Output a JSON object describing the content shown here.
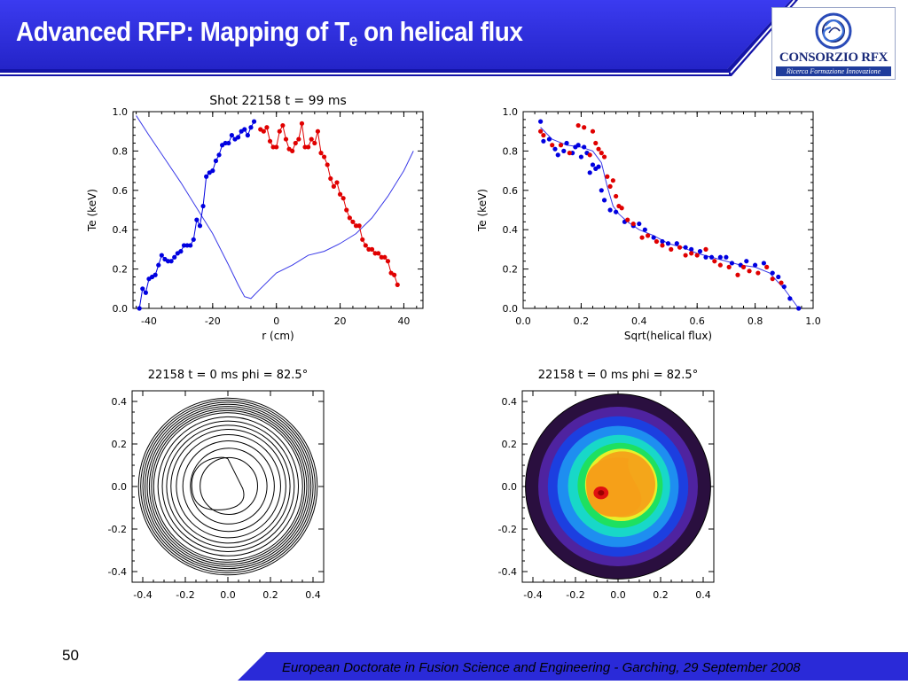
{
  "header": {
    "title_main": "Advanced RFP: Mapping of T",
    "title_sub": "e",
    "title_tail": " on helical flux",
    "colors": {
      "banner": "#2f2fe0",
      "banner_dark": "#1414a8",
      "accent": "#ffffff"
    }
  },
  "logo": {
    "name": "CONSORZIO RFX",
    "tagline": "Ricerca Formazione Innovazione",
    "icon": "rfx-swirl-icon"
  },
  "footer": {
    "page_number": "50",
    "text": "European Doctorate in Fusion Science and Engineering  -  Garching, 29 September 2008"
  },
  "chart_data": [
    {
      "type": "scatter",
      "title": "Shot  22158    t  =  99  ms",
      "xlabel": "r (cm)",
      "ylabel": "Te (keV)",
      "xlim": [
        -45,
        46
      ],
      "ylim": [
        0.0,
        1.0
      ],
      "xticks": [
        "-40",
        "-20",
        "0",
        "20",
        "40"
      ],
      "xtick_values": [
        -40,
        -20,
        0,
        20,
        40
      ],
      "yticks": [
        "0.0",
        "0.2",
        "0.4",
        "0.6",
        "0.8",
        "1.0"
      ],
      "series": [
        {
          "color": "#0000e0",
          "x": [
            -43,
            -42,
            -41,
            -40,
            -39,
            -38,
            -37,
            -36,
            -35,
            -34,
            -33,
            -32,
            -31,
            -30,
            -29,
            -28,
            -27,
            -26,
            -25,
            -24,
            -23,
            -22,
            -21,
            -20,
            -19,
            -18,
            -17,
            -16,
            -15,
            -14,
            -13,
            -12,
            -11,
            -10,
            -9,
            -8,
            -7
          ],
          "y": [
            0.0,
            0.1,
            0.08,
            0.15,
            0.16,
            0.17,
            0.22,
            0.27,
            0.25,
            0.24,
            0.24,
            0.26,
            0.28,
            0.29,
            0.32,
            0.32,
            0.32,
            0.35,
            0.45,
            0.42,
            0.52,
            0.67,
            0.69,
            0.7,
            0.75,
            0.78,
            0.83,
            0.84,
            0.84,
            0.88,
            0.86,
            0.87,
            0.9,
            0.91,
            0.88,
            0.92,
            0.95
          ]
        },
        {
          "color": "#e00000",
          "x": [
            -5,
            -4,
            -3,
            -2,
            -1,
            0,
            1,
            2,
            3,
            4,
            5,
            6,
            7,
            8,
            9,
            10,
            11,
            12,
            13,
            14,
            15,
            16,
            17,
            18,
            19,
            20,
            21,
            22,
            23,
            24,
            25,
            26,
            27,
            28,
            29,
            30,
            31,
            32,
            33,
            34,
            35,
            36,
            37,
            38
          ],
          "y": [
            0.91,
            0.9,
            0.92,
            0.85,
            0.82,
            0.82,
            0.9,
            0.93,
            0.86,
            0.81,
            0.8,
            0.84,
            0.86,
            0.94,
            0.82,
            0.82,
            0.86,
            0.84,
            0.9,
            0.79,
            0.77,
            0.73,
            0.66,
            0.62,
            0.64,
            0.58,
            0.56,
            0.5,
            0.46,
            0.44,
            0.42,
            0.42,
            0.35,
            0.32,
            0.3,
            0.3,
            0.28,
            0.28,
            0.26,
            0.26,
            0.24,
            0.18,
            0.17,
            0.12
          ]
        }
      ],
      "curve": {
        "color": "#3a3ae8",
        "x": [
          -44,
          -40,
          -35,
          -30,
          -25,
          -20,
          -15,
          -12,
          -10,
          -8,
          -5,
          0,
          5,
          10,
          15,
          20,
          25,
          30,
          35,
          40,
          43
        ],
        "y": [
          0.98,
          0.88,
          0.76,
          0.64,
          0.51,
          0.38,
          0.22,
          0.12,
          0.06,
          0.05,
          0.1,
          0.18,
          0.22,
          0.27,
          0.29,
          0.33,
          0.38,
          0.46,
          0.57,
          0.7,
          0.8
        ]
      }
    },
    {
      "type": "scatter",
      "title": "",
      "xlabel": "Sqrt(helical flux)",
      "ylabel": "Te (keV)",
      "xlim": [
        0.0,
        1.0
      ],
      "ylim": [
        0.0,
        1.0
      ],
      "xticks": [
        "0.0",
        "0.2",
        "0.4",
        "0.6",
        "0.8",
        "1.0"
      ],
      "xtick_values": [
        0.0,
        0.2,
        0.4,
        0.6,
        0.8,
        1.0
      ],
      "yticks": [
        "0.0",
        "0.2",
        "0.4",
        "0.6",
        "0.8",
        "1.0"
      ],
      "series": [
        {
          "color": "#0000e0",
          "x": [
            0.06,
            0.07,
            0.09,
            0.11,
            0.12,
            0.14,
            0.15,
            0.17,
            0.18,
            0.19,
            0.2,
            0.21,
            0.22,
            0.23,
            0.24,
            0.25,
            0.26,
            0.27,
            0.28,
            0.3,
            0.32,
            0.35,
            0.38,
            0.4,
            0.42,
            0.45,
            0.48,
            0.5,
            0.53,
            0.56,
            0.58,
            0.61,
            0.63,
            0.65,
            0.68,
            0.7,
            0.72,
            0.75,
            0.77,
            0.8,
            0.83,
            0.86,
            0.88,
            0.9,
            0.92,
            0.95
          ],
          "y": [
            0.95,
            0.85,
            0.86,
            0.81,
            0.78,
            0.8,
            0.84,
            0.79,
            0.82,
            0.83,
            0.77,
            0.82,
            0.79,
            0.69,
            0.73,
            0.71,
            0.72,
            0.6,
            0.55,
            0.5,
            0.49,
            0.44,
            0.42,
            0.43,
            0.4,
            0.36,
            0.34,
            0.33,
            0.33,
            0.31,
            0.3,
            0.29,
            0.26,
            0.26,
            0.26,
            0.26,
            0.23,
            0.22,
            0.24,
            0.22,
            0.23,
            0.18,
            0.16,
            0.11,
            0.05,
            0.0
          ]
        },
        {
          "color": "#e00000",
          "x": [
            0.06,
            0.07,
            0.1,
            0.13,
            0.16,
            0.19,
            0.21,
            0.23,
            0.24,
            0.25,
            0.26,
            0.27,
            0.28,
            0.29,
            0.3,
            0.31,
            0.32,
            0.33,
            0.34,
            0.36,
            0.38,
            0.41,
            0.43,
            0.46,
            0.48,
            0.51,
            0.54,
            0.56,
            0.58,
            0.6,
            0.63,
            0.66,
            0.68,
            0.71,
            0.74,
            0.76,
            0.78,
            0.81,
            0.84,
            0.86,
            0.89
          ],
          "y": [
            0.9,
            0.88,
            0.83,
            0.83,
            0.79,
            0.93,
            0.92,
            0.78,
            0.9,
            0.84,
            0.81,
            0.79,
            0.77,
            0.67,
            0.62,
            0.65,
            0.57,
            0.52,
            0.51,
            0.45,
            0.43,
            0.36,
            0.37,
            0.34,
            0.32,
            0.3,
            0.31,
            0.27,
            0.28,
            0.27,
            0.3,
            0.24,
            0.22,
            0.21,
            0.17,
            0.21,
            0.19,
            0.18,
            0.21,
            0.15,
            0.13
          ]
        }
      ],
      "curve": {
        "color": "#3a3ae8",
        "x": [
          0.06,
          0.1,
          0.15,
          0.2,
          0.24,
          0.27,
          0.29,
          0.31,
          0.33,
          0.36,
          0.4,
          0.45,
          0.5,
          0.55,
          0.6,
          0.65,
          0.7,
          0.75,
          0.8,
          0.85,
          0.9,
          0.95
        ],
        "y": [
          0.92,
          0.86,
          0.83,
          0.82,
          0.8,
          0.74,
          0.62,
          0.52,
          0.48,
          0.44,
          0.4,
          0.37,
          0.33,
          0.31,
          0.28,
          0.26,
          0.24,
          0.22,
          0.21,
          0.18,
          0.1,
          0.0
        ]
      }
    },
    {
      "type": "contour",
      "title": "22158   t  =  0  ms    phi  =    82.5°",
      "xlim": [
        -0.45,
        0.45
      ],
      "ylim": [
        -0.45,
        0.45
      ],
      "xticks": [
        "-0.4",
        "-0.2",
        "0.0",
        "0.2",
        "0.4"
      ],
      "xtick_values": [
        -0.4,
        -0.2,
        0.0,
        0.2,
        0.4
      ],
      "yticks": [
        "-0.4",
        "-0.2",
        "0.0",
        "0.2",
        "0.4"
      ],
      "ytick_values": [
        -0.4,
        -0.2,
        0.0,
        0.2,
        0.4
      ],
      "levels": [
        0.42,
        0.41,
        0.4,
        0.39,
        0.38,
        0.37,
        0.36,
        0.35,
        0.33,
        0.31,
        0.29,
        0.27,
        0.245,
        0.215,
        0.18,
        0.135
      ],
      "line_color": "#000000"
    },
    {
      "type": "heatmap",
      "title": "22158   t  =  0  ms    phi  =    82.5°",
      "xlim": [
        -0.45,
        0.45
      ],
      "ylim": [
        -0.45,
        0.45
      ],
      "xticks": [
        "-0.4",
        "-0.2",
        "0.0",
        "0.2",
        "0.4"
      ],
      "xtick_values": [
        -0.4,
        -0.2,
        0.0,
        0.2,
        0.4
      ],
      "yticks": [
        "-0.4",
        "-0.2",
        "0.0",
        "0.2",
        "0.4"
      ],
      "ytick_values": [
        -0.4,
        -0.2,
        0.0,
        0.2,
        0.4
      ],
      "bands": [
        {
          "r": 0.435,
          "color": "#2a0f3f"
        },
        {
          "r": 0.375,
          "color": "#4f23a0"
        },
        {
          "r": 0.33,
          "color": "#1c3fe0"
        },
        {
          "r": 0.285,
          "color": "#1e8ef0"
        },
        {
          "r": 0.24,
          "color": "#18d8c8"
        },
        {
          "r": 0.2,
          "color": "#1ee060"
        },
        {
          "r": 0.17,
          "color": "#e8f02a"
        },
        {
          "r": 0.155,
          "color": "#f4a61a"
        }
      ],
      "hot_spot": {
        "cx": -0.08,
        "cy": -0.03,
        "color": "#e01010",
        "core": "#9a0000"
      }
    }
  ]
}
